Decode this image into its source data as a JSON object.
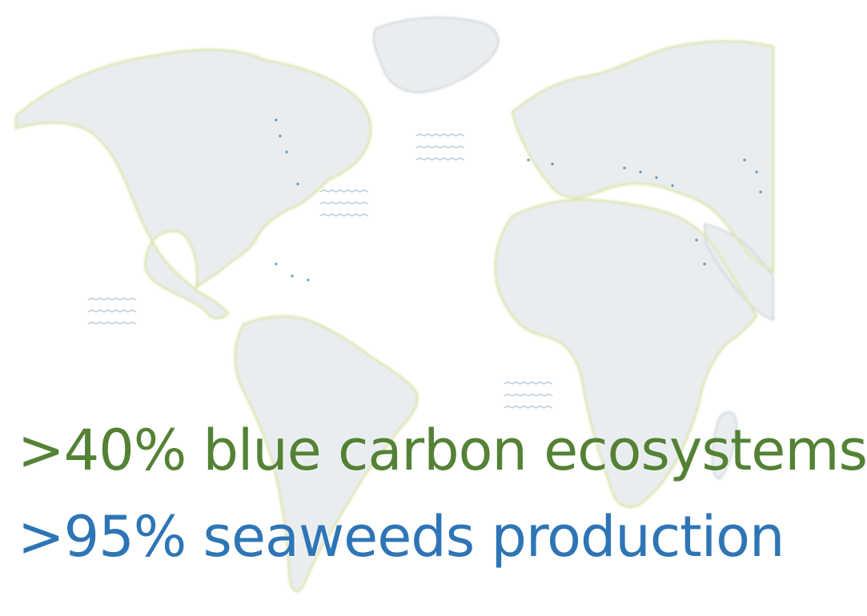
{
  "map": {
    "style": "faded world map with coastline highlights",
    "colors": {
      "land": "#e9edf0",
      "land_shadow": "#cfd6db",
      "coast_highlight": "#dfe8a8",
      "coast_dark": "#7f8a90",
      "coast_dots": "#2f6f9a",
      "wave_marks": "#b9cbd8",
      "background": "#ffffff"
    }
  },
  "stats": [
    {
      "text": ">40% blue carbon ecosystems",
      "color": "#548235"
    },
    {
      "text": ">95% seaweeds production",
      "color": "#2e75b6"
    }
  ]
}
